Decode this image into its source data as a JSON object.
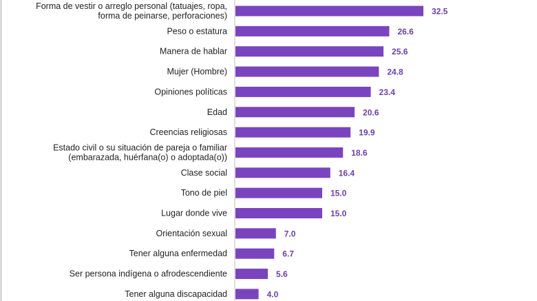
{
  "chart_data": {
    "type": "bar",
    "orientation": "horizontal",
    "categories": [
      "Forma de vestir o arreglo personal (tatuajes, ropa,|forma de peinarse, perforaciones)",
      "Peso o estatura",
      "Manera de hablar",
      "Mujer (Hombre)",
      "Opiniones políticas",
      "Edad",
      "Creencias religiosas",
      "Estado civil o su situación de pareja o familiar|(embarazada, huérfana(o) o adoptada(o))",
      "Clase social",
      "Tono de piel",
      "Lugar donde vive",
      "Orientación sexual",
      "Tener alguna enfermedad",
      "Ser persona indígena o afrodescendiente",
      "Tener alguna discapacidad"
    ],
    "values": [
      32.5,
      26.6,
      25.6,
      24.8,
      23.4,
      20.6,
      19.9,
      18.6,
      16.4,
      15.0,
      15.0,
      7.0,
      6.7,
      5.6,
      4.0
    ],
    "value_labels": [
      "32.5",
      "26.6",
      "25.6",
      "24.8",
      "23.4",
      "20.6",
      "19.9",
      "18.6",
      "16.4",
      "15.0",
      "15.0",
      "7.0",
      "6.7",
      "5.6",
      "4.0"
    ],
    "xlim": [
      0,
      32.5
    ],
    "grid": false,
    "legend": "none",
    "bar_color": "#7b44bf",
    "value_label_color": "#6b3fa8"
  }
}
